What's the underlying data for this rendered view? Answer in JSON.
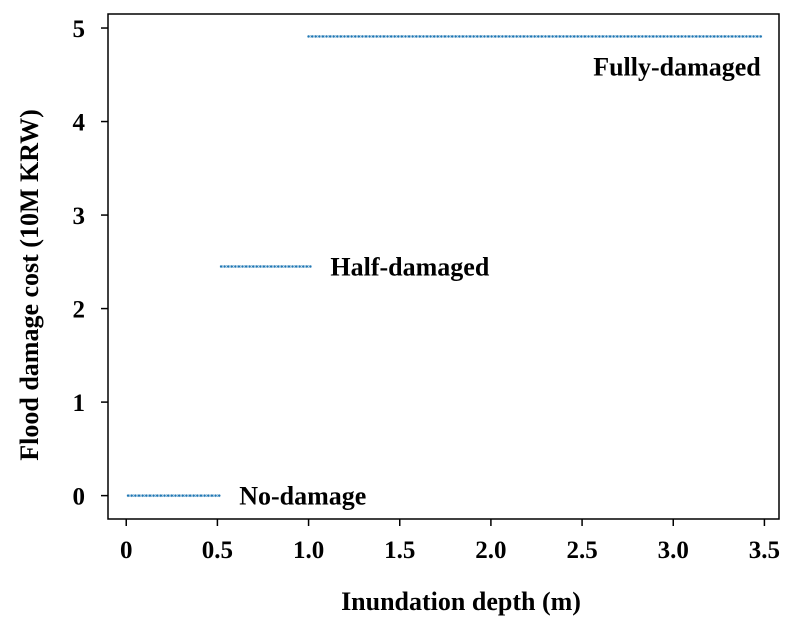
{
  "chart_data": {
    "type": "line",
    "title": "",
    "xlabel": "Inundation depth (m)",
    "ylabel": "Flood damage cost (10M KRW)",
    "xlim": [
      -0.1,
      3.58
    ],
    "ylim": [
      -0.25,
      5.15
    ],
    "xticks": [
      0,
      0.5,
      1.0,
      1.5,
      2.0,
      2.5,
      3.0,
      3.5
    ],
    "xtick_labels": [
      "0",
      "0.5",
      "1.0",
      "1.5",
      "2.0",
      "2.5",
      "3.0",
      "3.5"
    ],
    "yticks": [
      0,
      1,
      2,
      3,
      4,
      5
    ],
    "ytick_labels": [
      "0",
      "1",
      "2",
      "3",
      "4",
      "5"
    ],
    "grid": false,
    "legend": "none",
    "colors": {
      "series": "#1f77b4",
      "text": "#000000"
    },
    "series": [
      {
        "x_start": 0.01,
        "x_end": 0.51,
        "y": 0.0,
        "annotation": "No-damage"
      },
      {
        "x_start": 0.52,
        "x_end": 1.01,
        "y": 2.45,
        "annotation": "Half-damaged"
      },
      {
        "x_start": 1.0,
        "x_end": 3.48,
        "y": 4.91,
        "annotation": "Fully-damaged"
      }
    ]
  }
}
